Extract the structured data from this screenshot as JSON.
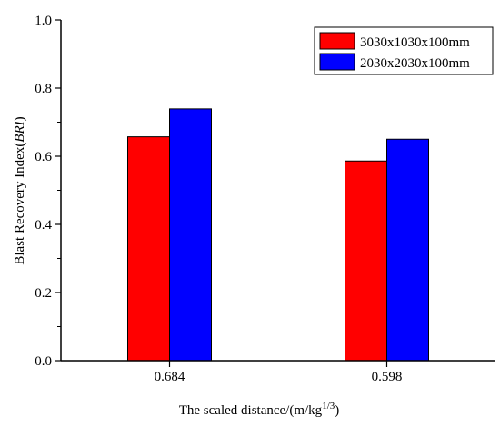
{
  "chart_data": {
    "type": "bar",
    "categories": [
      "0.684",
      "0.598"
    ],
    "series": [
      {
        "name": "3030x1030x100mm",
        "values": [
          0.657,
          0.586
        ],
        "color": "#ff0000"
      },
      {
        "name": "2030x2030x100mm",
        "values": [
          0.739,
          0.65
        ],
        "color": "#0000ff"
      }
    ],
    "xlabel_parts": {
      "base": "The scaled distance/(m/kg",
      "sup": "1/3",
      "tail": ")"
    },
    "ylabel_parts": {
      "base": "Blast Recovery Index(",
      "italic": "BRI",
      "tail": ")"
    },
    "ylim": [
      0.0,
      1.0
    ],
    "yticks": [
      "0.0",
      "0.2",
      "0.4",
      "0.6",
      "0.8",
      "1.0"
    ],
    "grid": false,
    "legend_position": "top-right"
  }
}
